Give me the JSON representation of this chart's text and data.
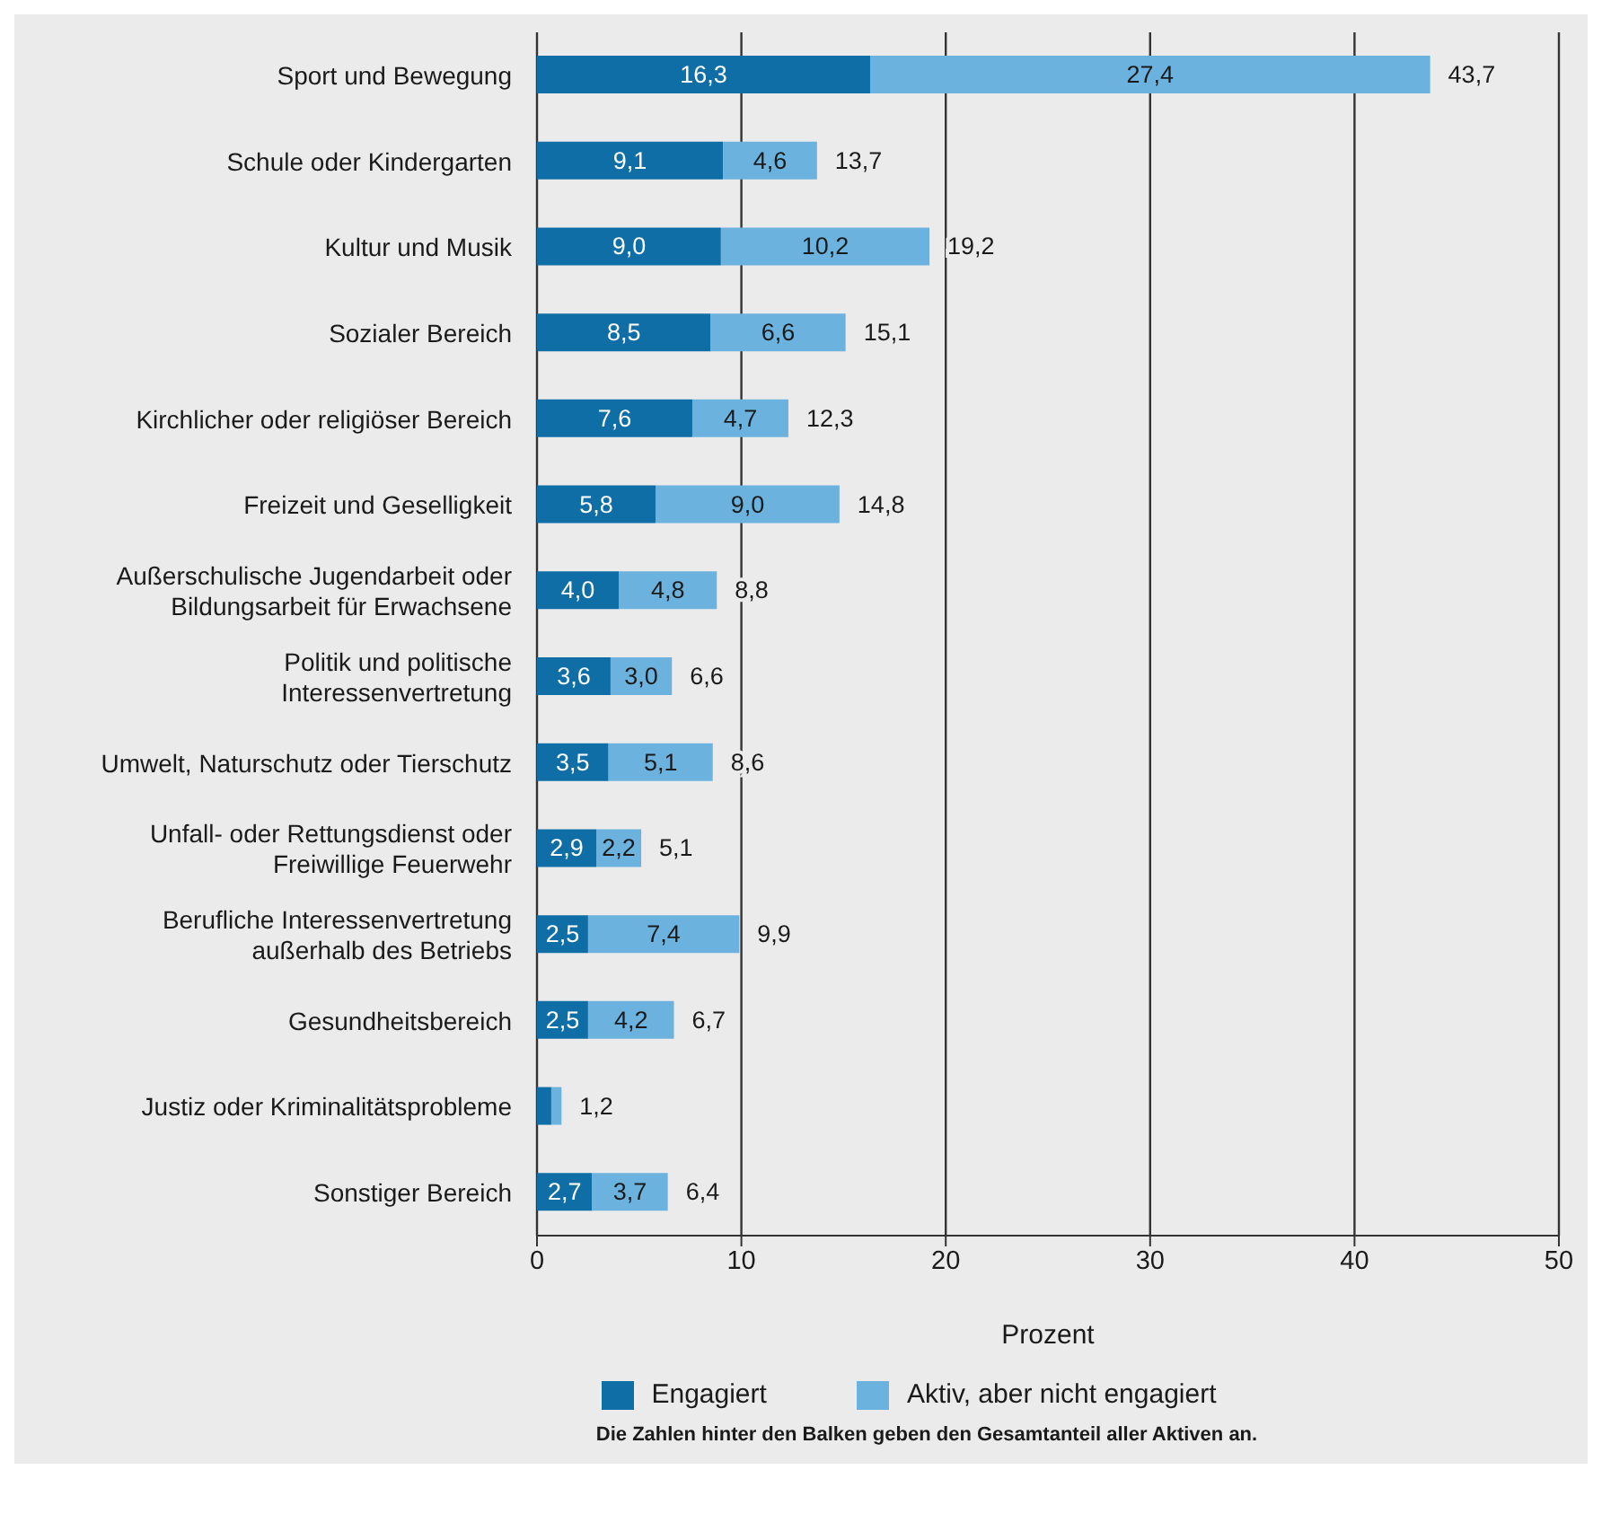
{
  "chart_data": {
    "type": "bar",
    "orientation": "horizontal",
    "stacked": true,
    "categories": [
      "Sport und Bewegung",
      "Schule oder Kindergarten",
      "Kultur und Musik",
      "Sozialer Bereich",
      "Kirchlicher oder religiöser Bereich",
      "Freizeit und Geselligkeit",
      "Außerschulische Jugendarbeit oder Bildungsarbeit für Erwachsene",
      "Politik und politische Interessenvertretung",
      "Umwelt, Naturschutz oder Tierschutz",
      "Unfall- oder Rettungsdienst oder Freiwillige Feuerwehr",
      "Berufliche Interessenvertretung außerhalb des Betriebs",
      "Gesundheitsbereich",
      "Justiz oder Kriminalitätsprobleme",
      "Sonstiger Bereich"
    ],
    "series": [
      {
        "name": "Engagiert",
        "color": "#0f6ea6",
        "values": [
          16.3,
          9.1,
          9.0,
          8.5,
          7.6,
          5.8,
          4.0,
          3.6,
          3.5,
          2.9,
          2.5,
          2.5,
          0.7,
          2.7
        ],
        "value_labels": [
          "16,3",
          "9,1",
          "9,0",
          "8,5",
          "7,6",
          "5,8",
          "4,0",
          "3,6",
          "3,5",
          "2,9",
          "2,5",
          "2,5",
          null,
          "2,7"
        ]
      },
      {
        "name": "Aktiv, aber nicht engagiert",
        "color": "#6cb2de",
        "values": [
          27.4,
          4.6,
          10.2,
          6.6,
          4.7,
          9.0,
          4.8,
          3.0,
          5.1,
          2.2,
          7.4,
          4.2,
          0.5,
          3.7
        ],
        "value_labels": [
          "27,4",
          "4,6",
          "10,2",
          "6,6",
          "4,7",
          "9,0",
          "4,8",
          "3,0",
          "5,1",
          "2,2",
          "7,4",
          "4,2",
          null,
          "3,7"
        ]
      }
    ],
    "totals": [
      "43,7",
      "13,7",
      "19,2",
      "15,1",
      "12,3",
      "14,8",
      "8,8",
      "6,6",
      "8,6",
      "5,1",
      "9,9",
      "6,7",
      "1,2",
      "6,4"
    ],
    "xlim": [
      0,
      50
    ],
    "xticks": [
      0,
      10,
      20,
      30,
      40,
      50
    ],
    "xlabel": "Prozent",
    "grid": "x",
    "legend": "bottom",
    "annotations": [
      "Die Zahlen hinter den Balken geben den Gesamtanteil aller Aktiven an."
    ]
  }
}
